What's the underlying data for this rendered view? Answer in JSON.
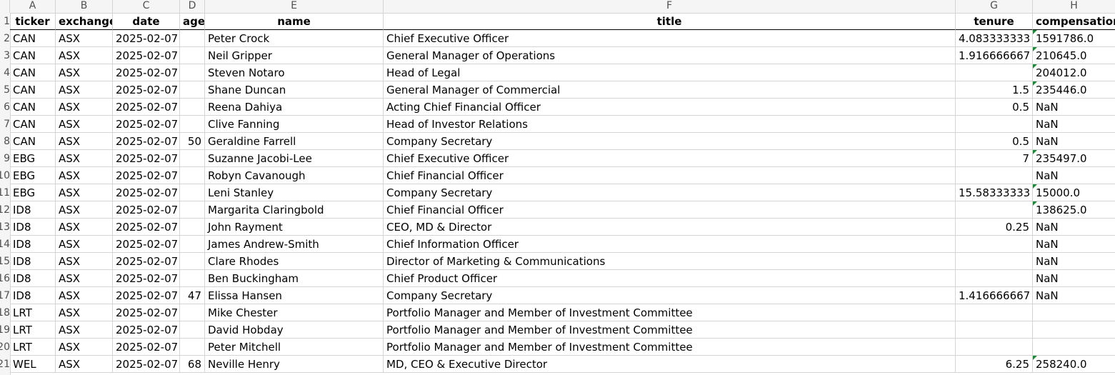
{
  "columns": [
    {
      "letter": "A"
    },
    {
      "letter": "B"
    },
    {
      "letter": "C"
    },
    {
      "letter": "D"
    },
    {
      "letter": "E"
    },
    {
      "letter": "F"
    },
    {
      "letter": "G"
    },
    {
      "letter": "H"
    }
  ],
  "row_numbers": [
    "1",
    "2",
    "3",
    "4",
    "5",
    "6",
    "7",
    "8",
    "9",
    "10",
    "11",
    "12",
    "13",
    "14",
    "15",
    "16",
    "17",
    "18",
    "19",
    "20",
    "21"
  ],
  "headers": [
    "ticker",
    "exchange",
    "date",
    "age",
    "name",
    "title",
    "tenure",
    "compensation"
  ],
  "rows": [
    {
      "ticker": "CAN",
      "exchange": "ASX",
      "date": "2025-02-07",
      "age": "",
      "name": "Peter Crock",
      "title": "Chief Executive Officer",
      "tenure": "4.083333333",
      "compensation": "1591786.0",
      "comp_text_flag": true
    },
    {
      "ticker": "CAN",
      "exchange": "ASX",
      "date": "2025-02-07",
      "age": "",
      "name": "Neil Gripper",
      "title": "General Manager of Operations",
      "tenure": "1.916666667",
      "compensation": "210645.0",
      "comp_text_flag": true
    },
    {
      "ticker": "CAN",
      "exchange": "ASX",
      "date": "2025-02-07",
      "age": "",
      "name": "Steven Notaro",
      "title": "Head of Legal",
      "tenure": "",
      "compensation": "204012.0",
      "comp_text_flag": true
    },
    {
      "ticker": "CAN",
      "exchange": "ASX",
      "date": "2025-02-07",
      "age": "",
      "name": "Shane Duncan",
      "title": "General Manager of Commercial",
      "tenure": "1.5",
      "compensation": "235446.0",
      "comp_text_flag": true
    },
    {
      "ticker": "CAN",
      "exchange": "ASX",
      "date": "2025-02-07",
      "age": "",
      "name": "Reena Dahiya",
      "title": "Acting Chief Financial Officer",
      "tenure": "0.5",
      "compensation": "NaN",
      "comp_text_flag": false
    },
    {
      "ticker": "CAN",
      "exchange": "ASX",
      "date": "2025-02-07",
      "age": "",
      "name": "Clive Fanning",
      "title": "Head of Investor Relations",
      "tenure": "",
      "compensation": "NaN",
      "comp_text_flag": false
    },
    {
      "ticker": "CAN",
      "exchange": "ASX",
      "date": "2025-02-07",
      "age": "50",
      "name": "Geraldine Farrell",
      "title": "Company Secretary",
      "tenure": "0.5",
      "compensation": "NaN",
      "comp_text_flag": false
    },
    {
      "ticker": "EBG",
      "exchange": "ASX",
      "date": "2025-02-07",
      "age": "",
      "name": "Suzanne Jacobi-Lee",
      "title": "Chief Executive Officer",
      "tenure": "7",
      "compensation": "235497.0",
      "comp_text_flag": true
    },
    {
      "ticker": "EBG",
      "exchange": "ASX",
      "date": "2025-02-07",
      "age": "",
      "name": "Robyn Cavanough",
      "title": "Chief Financial Officer",
      "tenure": "",
      "compensation": "NaN",
      "comp_text_flag": false
    },
    {
      "ticker": "EBG",
      "exchange": "ASX",
      "date": "2025-02-07",
      "age": "",
      "name": "Leni Stanley",
      "title": "Company Secretary",
      "tenure": "15.58333333",
      "compensation": "15000.0",
      "comp_text_flag": true
    },
    {
      "ticker": "ID8",
      "exchange": "ASX",
      "date": "2025-02-07",
      "age": "",
      "name": "Margarita Claringbold",
      "title": "Chief Financial Officer",
      "tenure": "",
      "compensation": "138625.0",
      "comp_text_flag": true
    },
    {
      "ticker": "ID8",
      "exchange": "ASX",
      "date": "2025-02-07",
      "age": "",
      "name": "John Rayment",
      "title": "CEO, MD & Director",
      "tenure": "0.25",
      "compensation": "NaN",
      "comp_text_flag": false
    },
    {
      "ticker": "ID8",
      "exchange": "ASX",
      "date": "2025-02-07",
      "age": "",
      "name": "James Andrew-Smith",
      "title": "Chief Information Officer",
      "tenure": "",
      "compensation": "NaN",
      "comp_text_flag": false
    },
    {
      "ticker": "ID8",
      "exchange": "ASX",
      "date": "2025-02-07",
      "age": "",
      "name": "Clare Rhodes",
      "title": "Director of Marketing & Communications",
      "tenure": "",
      "compensation": "NaN",
      "comp_text_flag": false
    },
    {
      "ticker": "ID8",
      "exchange": "ASX",
      "date": "2025-02-07",
      "age": "",
      "name": "Ben Buckingham",
      "title": "Chief Product Officer",
      "tenure": "",
      "compensation": "NaN",
      "comp_text_flag": false
    },
    {
      "ticker": "ID8",
      "exchange": "ASX",
      "date": "2025-02-07",
      "age": "47",
      "name": "Elissa Hansen",
      "title": "Company Secretary",
      "tenure": "1.416666667",
      "compensation": "NaN",
      "comp_text_flag": false
    },
    {
      "ticker": "LRT",
      "exchange": "ASX",
      "date": "2025-02-07",
      "age": "",
      "name": "Mike Chester",
      "title": "Portfolio Manager and Member of Investment Committee",
      "tenure": "",
      "compensation": "",
      "comp_text_flag": false
    },
    {
      "ticker": "LRT",
      "exchange": "ASX",
      "date": "2025-02-07",
      "age": "",
      "name": "David Hobday",
      "title": "Portfolio Manager and Member of Investment Committee",
      "tenure": "",
      "compensation": "",
      "comp_text_flag": false
    },
    {
      "ticker": "LRT",
      "exchange": "ASX",
      "date": "2025-02-07",
      "age": "",
      "name": "Peter Mitchell",
      "title": "Portfolio Manager and Member of Investment Committee",
      "tenure": "",
      "compensation": "",
      "comp_text_flag": false
    },
    {
      "ticker": "WEL",
      "exchange": "ASX",
      "date": "2025-02-07",
      "age": "68",
      "name": "Neville Henry",
      "title": "MD, CEO & Executive Director",
      "tenure": "6.25",
      "compensation": "258240.0",
      "comp_text_flag": true
    }
  ],
  "colors": {
    "header_bg": "#f5f5f5",
    "grid": "#d4d4d4",
    "error_flag": "#1e8a3a"
  }
}
